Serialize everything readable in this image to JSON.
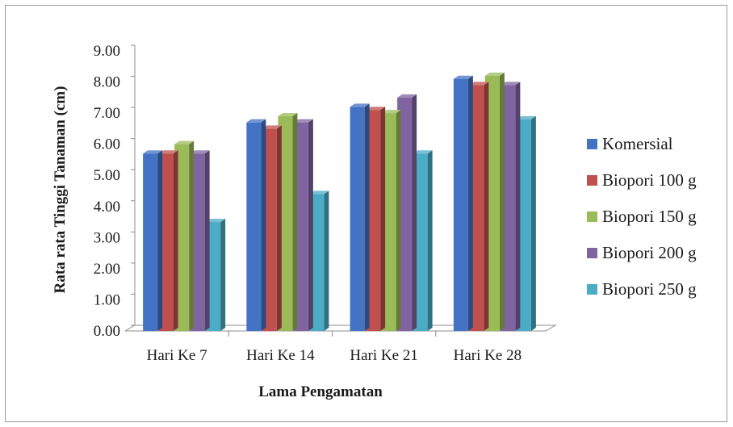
{
  "chart_data": {
    "type": "bar",
    "title": "",
    "xlabel": "Lama Pengamatan",
    "ylabel": "Rata rata Tinggi Tanaman (cm)",
    "ylim": [
      0,
      9
    ],
    "ytick_step": 1,
    "ytick_labels": [
      "0.00",
      "1.00",
      "2.00",
      "3.00",
      "4.00",
      "5.00",
      "6.00",
      "7.00",
      "8.00",
      "9.00"
    ],
    "categories": [
      "Hari Ke 7",
      "Hari Ke 14",
      "Hari Ke 21",
      "Hari Ke 28"
    ],
    "legend_position": "right",
    "grid": false,
    "series": [
      {
        "name": "Komersial",
        "color": "#4472C4",
        "values": [
          5.7,
          6.7,
          7.2,
          8.1
        ]
      },
      {
        "name": "Biopori 100 g",
        "color": "#C0504D",
        "values": [
          5.7,
          6.5,
          7.1,
          7.9
        ]
      },
      {
        "name": "Biopori 150 g",
        "color": "#9BBB59",
        "values": [
          6.0,
          6.9,
          7.0,
          8.2
        ]
      },
      {
        "name": "Biopori 200 g",
        "color": "#8064A2",
        "values": [
          5.7,
          6.7,
          7.5,
          7.9
        ]
      },
      {
        "name": "Biopori 250 g",
        "color": "#4BACC6",
        "values": [
          3.5,
          4.4,
          5.7,
          6.8
        ]
      }
    ]
  }
}
